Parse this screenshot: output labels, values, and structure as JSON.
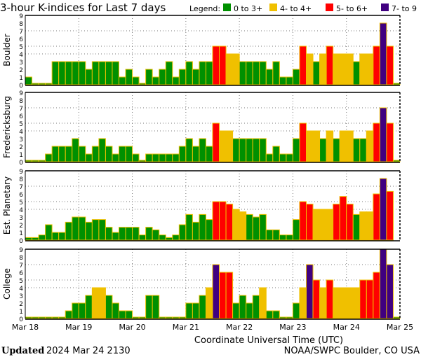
{
  "chart_data": {
    "type": "bar",
    "title": "3-hour K-indices for Last 7 days",
    "legend": {
      "label": "Legend:",
      "placement": "top-right",
      "entries": [
        {
          "label": "0 to 3+",
          "color": "#009000"
        },
        {
          "label": "4- to 4+",
          "color": "#f0c000"
        },
        {
          "label": "5- to 6+",
          "color": "#ff0000"
        },
        {
          "label": "7- to 9",
          "color": "#400080"
        }
      ]
    },
    "xlabel": "Coordinate Universal Time (UTC)",
    "x_ticks": [
      "Mar 18",
      "Mar 19",
      "Mar 20",
      "Mar 21",
      "Mar 22",
      "Mar 23",
      "Mar 24",
      "Mar 25"
    ],
    "y_ticks": [
      "0",
      "1",
      "2",
      "3",
      "4",
      "5",
      "6",
      "7",
      "8",
      "9"
    ],
    "ylim": [
      0,
      9
    ],
    "gridlines_y": [
      4,
      5,
      7
    ],
    "outline_color": "#f0c000",
    "panels": [
      {
        "name": "Boulder",
        "values": [
          1,
          0,
          0,
          0,
          3,
          3,
          3,
          3,
          3,
          2,
          3,
          3,
          3,
          3,
          1,
          2,
          1,
          0,
          2,
          1,
          2,
          3,
          1,
          2,
          3,
          2,
          3,
          3,
          5,
          5,
          4,
          4,
          3,
          3,
          3,
          3,
          2,
          3,
          1,
          1,
          2,
          5,
          4,
          3,
          4,
          5,
          4,
          4,
          4,
          3,
          4,
          4,
          5,
          8,
          5,
          0
        ]
      },
      {
        "name": "Fredericksburg",
        "values": [
          0,
          0,
          0,
          1,
          2,
          2,
          2,
          3,
          2,
          1,
          2,
          3,
          2,
          1,
          2,
          2,
          1,
          0,
          1,
          1,
          1,
          1,
          1,
          2,
          3,
          2,
          3,
          2,
          5,
          4,
          4,
          3,
          3,
          3,
          3,
          3,
          1,
          2,
          1,
          1,
          3,
          5,
          4,
          4,
          3,
          4,
          3,
          4,
          4,
          3,
          3,
          4,
          5,
          7,
          5,
          0
        ]
      },
      {
        "name": "Est. Planetary",
        "values": [
          0.33,
          0.33,
          0.67,
          2,
          1,
          1,
          2.33,
          3,
          3,
          2.33,
          2.67,
          2.67,
          1.67,
          1,
          1.67,
          1.67,
          1.67,
          0.67,
          1.67,
          1.33,
          0.67,
          0.33,
          0.67,
          2,
          3.33,
          2.33,
          3.33,
          2.67,
          5,
          5,
          4.67,
          4,
          3.67,
          3.33,
          3,
          3.33,
          1.33,
          1.33,
          0.67,
          0.67,
          2.67,
          5,
          4.67,
          4,
          4,
          4,
          4.67,
          5.67,
          4.67,
          3.33,
          3.67,
          3.67,
          6,
          8,
          6.33,
          null
        ]
      },
      {
        "name": "College",
        "values": [
          0,
          0,
          0,
          0,
          0,
          0,
          1,
          2,
          2,
          3,
          4,
          4,
          3,
          2,
          1,
          1,
          0,
          0,
          3,
          3,
          0,
          0,
          0,
          0,
          2,
          2,
          3,
          4,
          7,
          6,
          6,
          2,
          3,
          2,
          3,
          4,
          1,
          1,
          0,
          0,
          2,
          4,
          7,
          5,
          4,
          5,
          4,
          4,
          4,
          4,
          5,
          5,
          6,
          9,
          7,
          0
        ]
      }
    ]
  },
  "footer": {
    "updated_label": "Updated",
    "updated_value": "2024 Mar 24 2130",
    "source": "NOAA/SWPC Boulder, CO USA"
  }
}
